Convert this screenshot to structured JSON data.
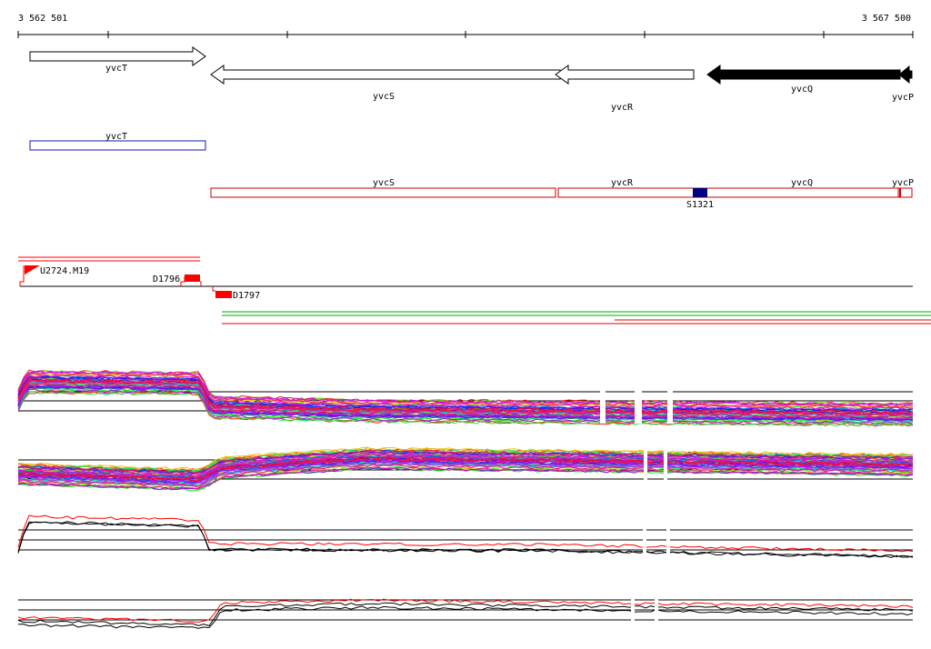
{
  "ruler": {
    "start_label": "3 562 501",
    "end_label": "3 567 500"
  },
  "genes": [
    {
      "id": "yvcT",
      "label": "yvcT",
      "strand": "+",
      "filled": false
    },
    {
      "id": "yvcS",
      "label": "yvcS",
      "strand": "-",
      "filled": false
    },
    {
      "id": "yvcR",
      "label": "yvcR",
      "strand": "-",
      "filled": false
    },
    {
      "id": "yvcQ",
      "label": "yvcQ",
      "strand": "-",
      "filled": true
    },
    {
      "id": "yvcP",
      "label": "yvcP",
      "strand": "-",
      "filled": true
    }
  ],
  "blue_features": [
    {
      "label": "yvcT"
    }
  ],
  "red_features": [
    {
      "label": "yvcS"
    },
    {
      "label": "yvcR"
    },
    {
      "label": "yvcQ"
    },
    {
      "label": "yvcP"
    }
  ],
  "site": {
    "label": "S1321",
    "color": "#000080"
  },
  "promoter": {
    "label": "U2724.M19"
  },
  "terminators": [
    {
      "label": "D1796"
    },
    {
      "label": "D1797"
    }
  ],
  "colors": {
    "gene_filled": "#000000",
    "blue_feature": "#1a1aaa",
    "red_feature": "#cc0000",
    "marker_red": "#ff0000",
    "track_green": "#00aa00",
    "track_red": "#dd0000"
  }
}
